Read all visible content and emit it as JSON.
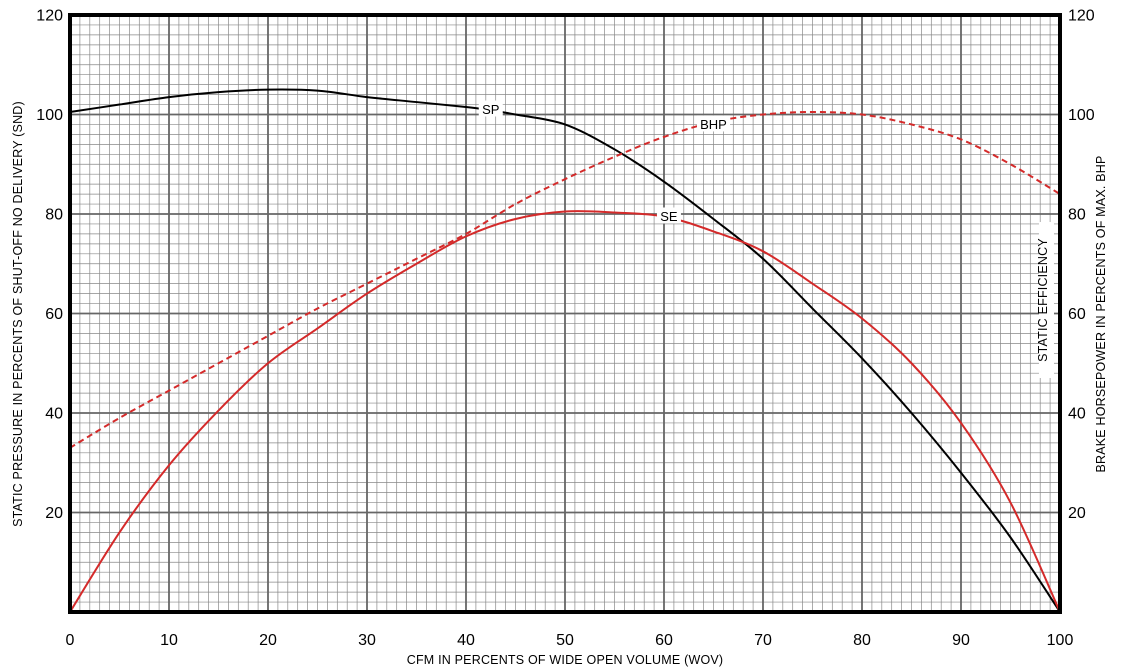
{
  "chart_data": {
    "type": "line",
    "title": "",
    "xlabel": "CFM IN PERCENTS OF WIDE OPEN VOLUME (WOV)",
    "ylabel_left": "STATIC PRESSURE IN PERCENTS OF SHUT-OFF NO DELIVERY (SND)",
    "ylabel_right": "BRAKE HORSEPOWER IN PERCENTS OF MAX. BHP",
    "xlim": [
      0,
      100
    ],
    "ylim": [
      0,
      120
    ],
    "x_ticks": [
      "0",
      "10",
      "20",
      "30",
      "40",
      "50",
      "60",
      "70",
      "80",
      "90",
      "100"
    ],
    "y_ticks_left": [
      "20",
      "40",
      "60",
      "80",
      "100",
      "120"
    ],
    "y_ticks_right": [
      "20",
      "40",
      "60",
      "80",
      "100",
      "120"
    ],
    "grid": true,
    "annotation": "STATIC EFFICIENCY",
    "series": [
      {
        "name": "SP",
        "color": "#000000",
        "style": "solid",
        "label_at": [
          42.5,
          101
        ],
        "x": [
          0,
          5,
          10,
          15,
          20,
          25,
          30,
          35,
          40,
          42,
          45,
          50,
          55,
          60,
          65,
          70,
          75,
          80,
          85,
          90,
          95,
          100
        ],
        "y": [
          100.5,
          102,
          103.5,
          104.5,
          105,
          104.8,
          103.5,
          102.5,
          101.5,
          101,
          100,
          98,
          93,
          86.5,
          79,
          71,
          61,
          51,
          40,
          28,
          15,
          0
        ]
      },
      {
        "name": "BHP",
        "color": "#d42a2a",
        "style": "dashed",
        "label_at": [
          65,
          98
        ],
        "x": [
          0,
          5,
          10,
          15,
          20,
          25,
          30,
          35,
          40,
          45,
          50,
          55,
          60,
          65,
          70,
          75,
          80,
          85,
          90,
          95,
          100
        ],
        "y": [
          33,
          39,
          44.5,
          50,
          55.5,
          61,
          66,
          71,
          76,
          82,
          87,
          91.5,
          95.5,
          98.5,
          100,
          100.5,
          100,
          98,
          95,
          90,
          84
        ]
      },
      {
        "name": "SE",
        "color": "#d42a2a",
        "style": "solid",
        "label_at": [
          60.5,
          79.5
        ],
        "x": [
          0,
          5,
          10,
          15,
          20,
          25,
          30,
          35,
          40,
          45,
          50,
          55,
          60,
          65,
          70,
          75,
          80,
          85,
          90,
          95,
          100
        ],
        "y": [
          0,
          16,
          29.5,
          40.5,
          50,
          57,
          64,
          70,
          75.5,
          79,
          80.5,
          80.3,
          79.5,
          76.5,
          72.5,
          66,
          59,
          50,
          38,
          22,
          0
        ]
      }
    ]
  }
}
